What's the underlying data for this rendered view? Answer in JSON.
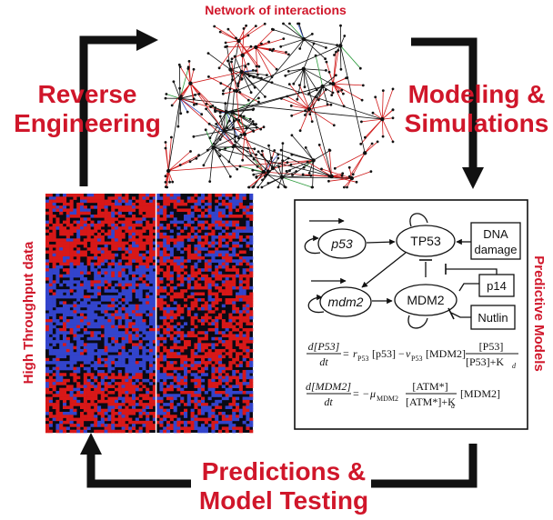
{
  "colors": {
    "accent_red": "#d0162a",
    "arrow": "#111111",
    "heat_red": "#d81818",
    "heat_blue": "#3344cc",
    "heat_black": "#0a0a14",
    "net_red": "#d01a1a",
    "net_black": "#111111",
    "net_green": "#2a9a3a",
    "net_blue": "#3050c0"
  },
  "labels": {
    "network_title": "Network of interactions",
    "reverse_line1": "Reverse",
    "reverse_line2": "Engineering",
    "modeling_line1": "Modeling &",
    "modeling_line2": "Simulations",
    "predictions_line1": "Predictions &",
    "predictions_line2": "Model Testing",
    "high_throughput": "High Throughput data",
    "predictive_models": "Predictive Models"
  },
  "model": {
    "nodes": {
      "p53_gene": "p53",
      "tp53": "TP53",
      "dna_line1": "DNA",
      "dna_line2": "damage",
      "mdm2_gene": "mdm2",
      "mdm2_protein": "MDM2",
      "p14": "p14",
      "nutlin": "Nutlin"
    },
    "eq1": {
      "lhs_num": "d[P53]",
      "lhs_den": "dt",
      "rate1": "r",
      "rate1_sub": "P53",
      "term1": "[p53]",
      "rate2": "v",
      "rate2_sub": "P53",
      "term2": "[MDM2]",
      "frac_num": "[P53]",
      "frac_den": "[P53]+K",
      "frac_den_sub": "d"
    },
    "eq2": {
      "lhs_num": "d[MDM2]",
      "lhs_den": "dt",
      "rate": "μ",
      "rate_sub": "MDM2",
      "frac_num": "[ATM*]",
      "frac_den": "[ATM*]+K",
      "frac_den_sub": "a",
      "term": "[MDM2]"
    }
  }
}
